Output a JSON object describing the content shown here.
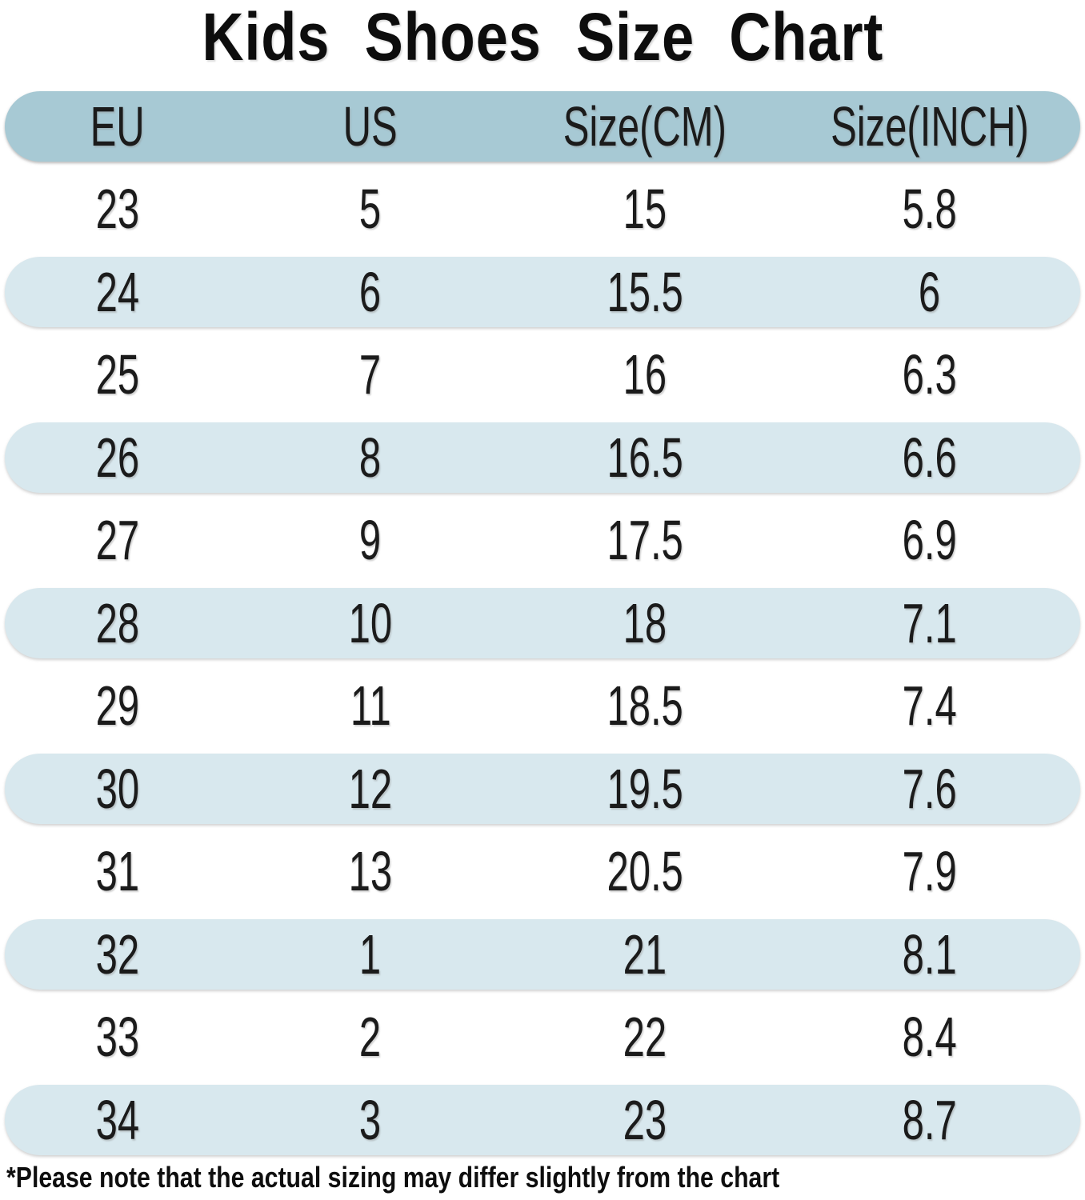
{
  "title": "Kids Shoes Size Chart",
  "chart_data": {
    "type": "table",
    "columns": [
      "EU",
      "US",
      "Size(CM)",
      "Size(INCH)"
    ],
    "rows": [
      [
        "23",
        "5",
        "15",
        "5.8"
      ],
      [
        "24",
        "6",
        "15.5",
        "6"
      ],
      [
        "25",
        "7",
        "16",
        "6.3"
      ],
      [
        "26",
        "8",
        "16.5",
        "6.6"
      ],
      [
        "27",
        "9",
        "17.5",
        "6.9"
      ],
      [
        "28",
        "10",
        "18",
        "7.1"
      ],
      [
        "29",
        "11",
        "18.5",
        "7.4"
      ],
      [
        "30",
        "12",
        "19.5",
        "7.6"
      ],
      [
        "31",
        "13",
        "20.5",
        "7.9"
      ],
      [
        "32",
        "1",
        "21",
        "8.1"
      ],
      [
        "33",
        "2",
        "22",
        "8.4"
      ],
      [
        "34",
        "3",
        "23",
        "8.7"
      ]
    ],
    "title": "Kids Shoes Size Chart",
    "legend": "none",
    "grid": "off"
  },
  "footnote": "*Please note that the actual sizing may differ slightly from the chart",
  "colors": {
    "header_pill": "#a7c9d4",
    "row_pill": "#d8e8ee",
    "text": "#1b1b1b",
    "background": "#ffffff"
  }
}
